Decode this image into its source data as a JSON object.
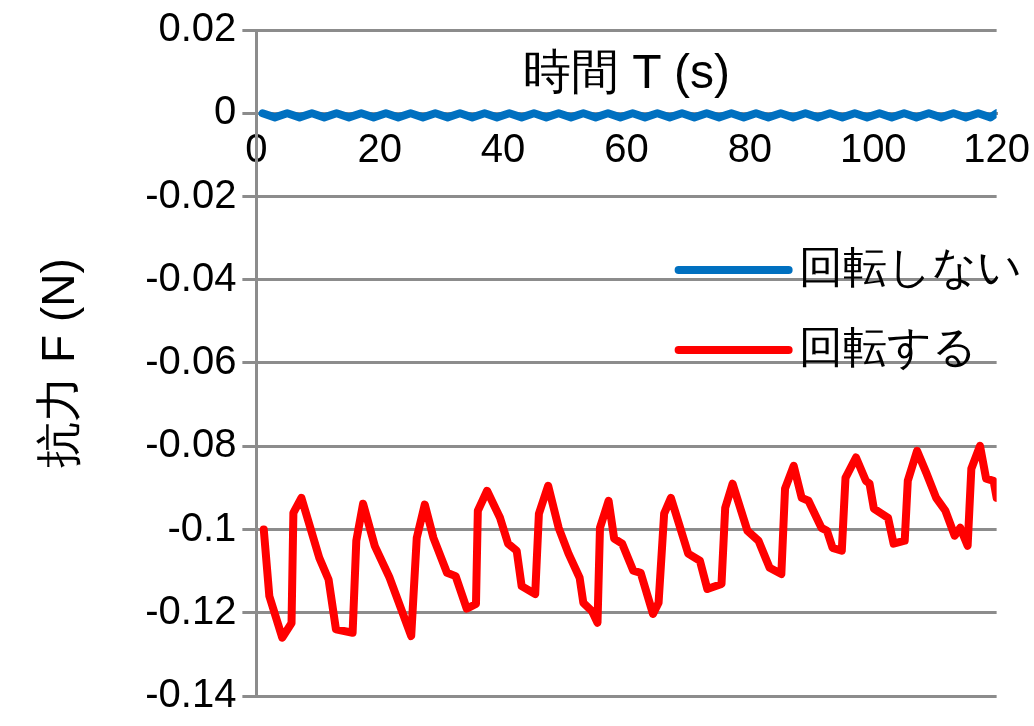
{
  "chart_data": {
    "type": "line",
    "xlabel": "時間 T (s)",
    "ylabel": "抗力 F (N)",
    "xlim": [
      0,
      120
    ],
    "xticks": [
      0,
      20,
      40,
      60,
      80,
      100,
      120
    ],
    "ylim": [
      -0.14,
      0.02
    ],
    "yticks": [
      0.02,
      0,
      -0.02,
      -0.04,
      -0.06,
      -0.08,
      -0.1,
      -0.12,
      -0.14
    ],
    "grid": "y",
    "legend": "right",
    "marker": "none",
    "line_style": "solid",
    "series": [
      {
        "name": "回転しない",
        "color": "#0070c0",
        "x": [
          1,
          3,
          5,
          7,
          9,
          11,
          13,
          15,
          17,
          19,
          21,
          23,
          25,
          27,
          29,
          31,
          33,
          35,
          37,
          39,
          41,
          43,
          45,
          47,
          49,
          51,
          53,
          55,
          57,
          59,
          61,
          63,
          65,
          67,
          69,
          71,
          73,
          75,
          77,
          79,
          81,
          83,
          85,
          87,
          89,
          91,
          93,
          95,
          97,
          99,
          101,
          103,
          105,
          107,
          109,
          111,
          113,
          115,
          117,
          119,
          120
        ],
        "values": [
          0,
          -0.001,
          0,
          -0.001,
          0,
          -0.001,
          0,
          -0.001,
          0,
          -0.001,
          0,
          -0.001,
          0,
          -0.001,
          0,
          -0.001,
          0,
          -0.001,
          0,
          -0.001,
          0,
          -0.001,
          0,
          -0.001,
          0,
          -0.001,
          0,
          -0.001,
          0,
          -0.001,
          0,
          -0.001,
          0,
          -0.001,
          0,
          -0.001,
          0,
          -0.001,
          0,
          -0.001,
          0,
          -0.001,
          0,
          -0.001,
          0,
          -0.001,
          0,
          -0.001,
          0,
          -0.001,
          0,
          -0.001,
          0,
          -0.001,
          0,
          -0.001,
          0,
          -0.001,
          0,
          -0.001,
          0
        ]
      },
      {
        "name": "回転する",
        "color": "#ff0000",
        "x": [
          1.2,
          2.1,
          4.2,
          5.7,
          6,
          7.3,
          10.2,
          11.7,
          12.9,
          15.6,
          16.2,
          17.3,
          19.2,
          21.6,
          25.1,
          26,
          27.3,
          28.7,
          30.9,
          32.3,
          34.1,
          35.6,
          35.9,
          37.4,
          39.5,
          40.8,
          42.2,
          43,
          45.2,
          45.8,
          47.3,
          49,
          50.6,
          52.4,
          53,
          54.4,
          55.3,
          55.7,
          57.1,
          58,
          59.3,
          61.1,
          62.3,
          64.3,
          65.2,
          66.1,
          67.2,
          70,
          71.9,
          73.1,
          75.4,
          76,
          77.2,
          79.6,
          81.4,
          83.2,
          85.1,
          85.7,
          87.1,
          88.4,
          89.5,
          91.6,
          92.5,
          93.4,
          94.9,
          95.5,
          97.2,
          98.8,
          99.4,
          100.1,
          102.4,
          103.3,
          105.1,
          105.6,
          107.1,
          108.6,
          110.2,
          111.7,
          113.2,
          114.1,
          115.3,
          115.9,
          117.3,
          118.3,
          119.5,
          120
        ],
        "values": [
          -0.1,
          -0.116,
          -0.126,
          -0.1225,
          -0.096,
          -0.0924,
          -0.1068,
          -0.112,
          -0.124,
          -0.1248,
          -0.1027,
          -0.0938,
          -0.104,
          -0.1116,
          -0.1256,
          -0.102,
          -0.094,
          -0.102,
          -0.1104,
          -0.1112,
          -0.119,
          -0.1179,
          -0.0955,
          -0.0907,
          -0.0972,
          -0.1034,
          -0.1051,
          -0.1136,
          -0.1155,
          -0.0962,
          -0.0895,
          -0.0996,
          -0.1058,
          -0.1116,
          -0.1176,
          -0.1196,
          -0.1224,
          -0.0996,
          -0.0931,
          -0.1022,
          -0.1034,
          -0.1099,
          -0.1104,
          -0.1203,
          -0.1176,
          -0.0962,
          -0.0924,
          -0.1058,
          -0.1075,
          -0.1143,
          -0.1131,
          -0.0948,
          -0.089,
          -0.1003,
          -0.1027,
          -0.1092,
          -0.1107,
          -0.0902,
          -0.0847,
          -0.0924,
          -0.0931,
          -0.0996,
          -0.1003,
          -0.1044,
          -0.1051,
          -0.0876,
          -0.0827,
          -0.0883,
          -0.089,
          -0.095,
          -0.0972,
          -0.1034,
          -0.1027,
          -0.0883,
          -0.0811,
          -0.0864,
          -0.0924,
          -0.0955,
          -0.1015,
          -0.0996,
          -0.1039,
          -0.0854,
          -0.0799,
          -0.0878,
          -0.0883,
          -0.0924
        ]
      }
    ]
  }
}
